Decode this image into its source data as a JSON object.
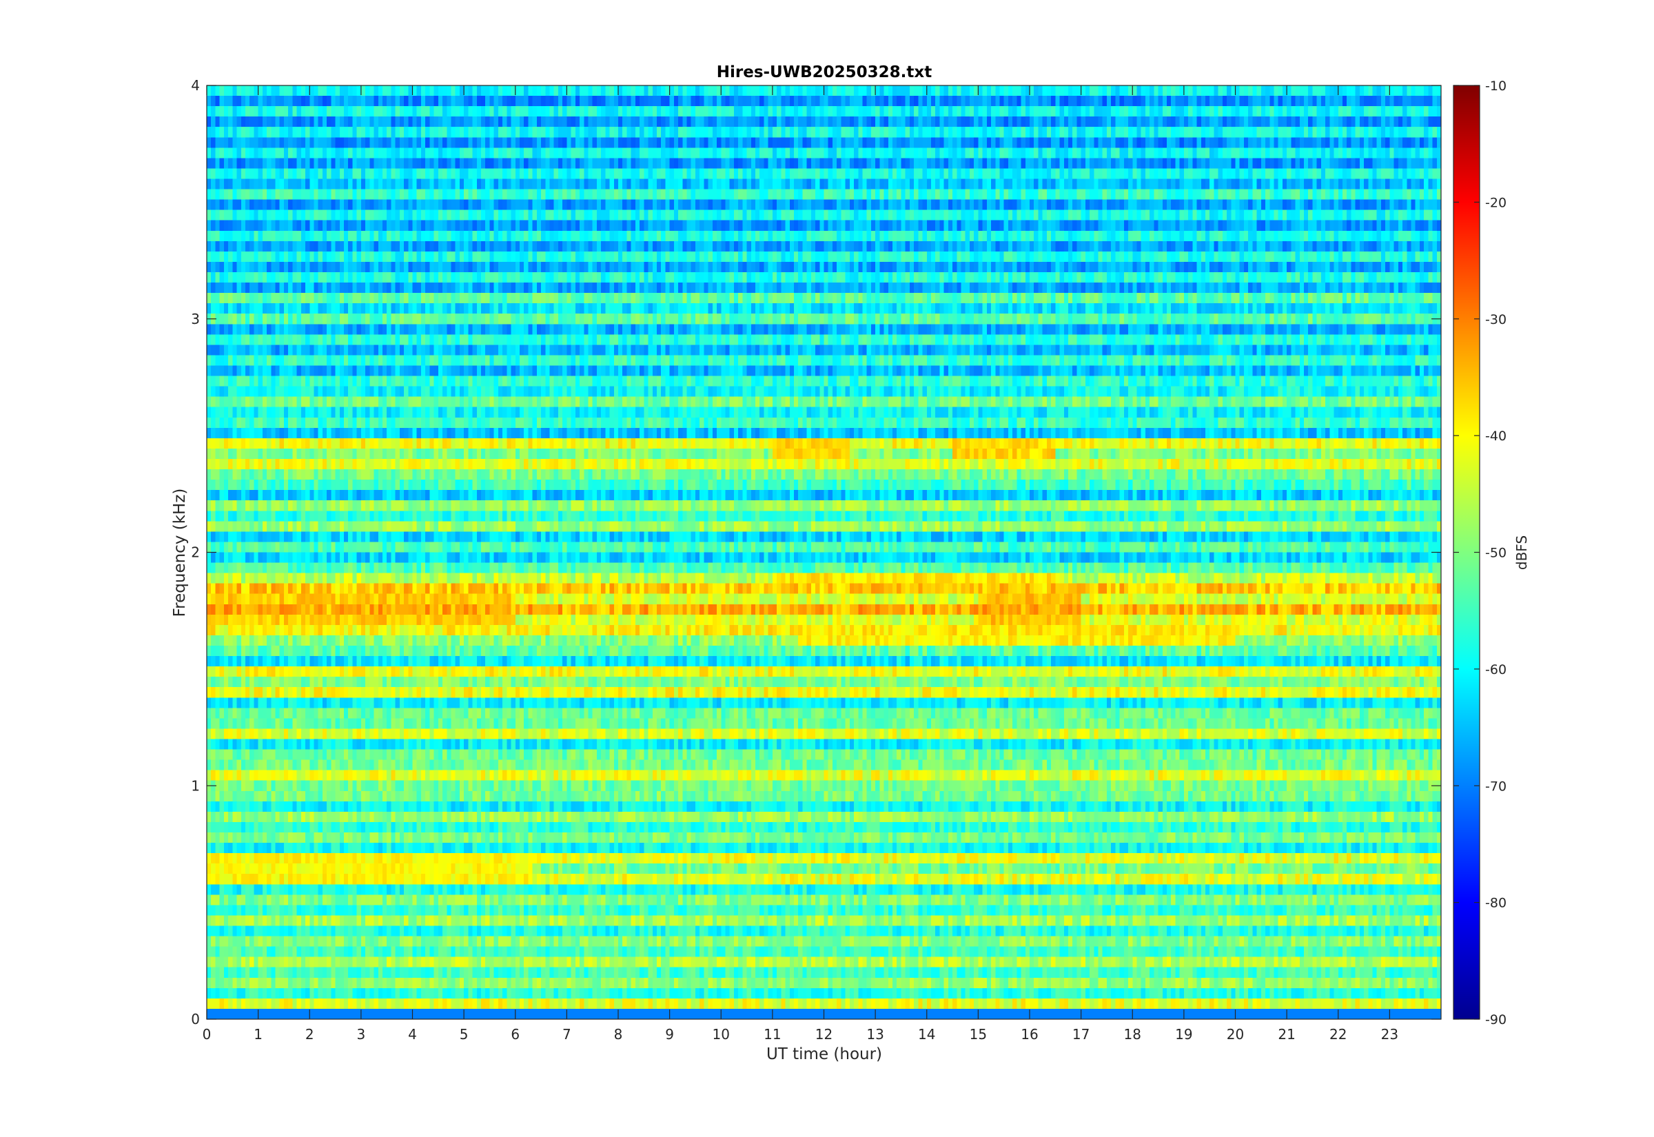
{
  "chart_data": {
    "type": "heatmap",
    "title": "Hires-UWB20250328.txt",
    "xlabel": "UT time (hour)",
    "ylabel": "Frequency (kHz)",
    "xlim": [
      0,
      24
    ],
    "ylim": [
      0,
      4
    ],
    "x_ticks": [
      0,
      1,
      2,
      3,
      4,
      5,
      6,
      7,
      8,
      9,
      10,
      11,
      12,
      13,
      14,
      15,
      16,
      17,
      18,
      19,
      20,
      21,
      22,
      23
    ],
    "x_tick_labels": [
      "0",
      "1",
      "2",
      "3",
      "4",
      "5",
      "6",
      "7",
      "8",
      "9",
      "10",
      "11",
      "12",
      "13",
      "14",
      "15",
      "16",
      "17",
      "18",
      "19",
      "20",
      "21",
      "22",
      "23"
    ],
    "y_ticks": [
      0,
      1,
      2,
      3,
      4
    ],
    "y_tick_labels": [
      "0",
      "1",
      "2",
      "3",
      "4"
    ],
    "colorscale": "jet",
    "colorbar": {
      "label": "dBFS",
      "range": [
        -90,
        -10
      ],
      "ticks": [
        -90,
        -80,
        -70,
        -60,
        -50,
        -40,
        -30,
        -20,
        -10
      ],
      "tick_labels": [
        "-90",
        "-80",
        "-70",
        "-60",
        "-50",
        "-40",
        "-30",
        "-20",
        "-10"
      ]
    },
    "grid": false,
    "intensity_profile": {
      "description_units": "dBFS baseline per frequency band (kHz)",
      "bands": [
        {
          "f": 0.05,
          "level": -46
        },
        {
          "f": 0.25,
          "level": -50
        },
        {
          "f": 0.45,
          "level": -51
        },
        {
          "f": 0.65,
          "level": -46
        },
        {
          "f": 0.85,
          "level": -52
        },
        {
          "f": 1.05,
          "level": -46
        },
        {
          "f": 1.25,
          "level": -47
        },
        {
          "f": 1.45,
          "level": -45
        },
        {
          "f": 1.65,
          "level": -44
        },
        {
          "f": 1.75,
          "level": -38
        },
        {
          "f": 1.85,
          "level": -40
        },
        {
          "f": 2.15,
          "level": -52
        },
        {
          "f": 2.35,
          "level": -46
        },
        {
          "f": 2.45,
          "level": -45
        },
        {
          "f": 2.65,
          "level": -55
        },
        {
          "f": 3.05,
          "level": -57
        },
        {
          "f": 3.55,
          "level": -60
        },
        {
          "f": 3.85,
          "level": -63
        }
      ],
      "strong_segments": [
        {
          "f": 1.75,
          "x0": 0,
          "x1": 6,
          "level": -36
        },
        {
          "f": 1.75,
          "x0": 15,
          "x1": 17,
          "level": -35
        },
        {
          "f": 0.65,
          "x0": 0,
          "x1": 6.3,
          "level": -40
        },
        {
          "f": 2.45,
          "x0": 11,
          "x1": 12.5,
          "level": -37
        },
        {
          "f": 2.45,
          "x0": 14.5,
          "x1": 16.5,
          "level": -37
        },
        {
          "f": 1.85,
          "x0": 11,
          "x1": 16.5,
          "level": -38
        },
        {
          "f": 1.65,
          "x0": 11.5,
          "x1": 20,
          "level": -39
        }
      ]
    }
  }
}
